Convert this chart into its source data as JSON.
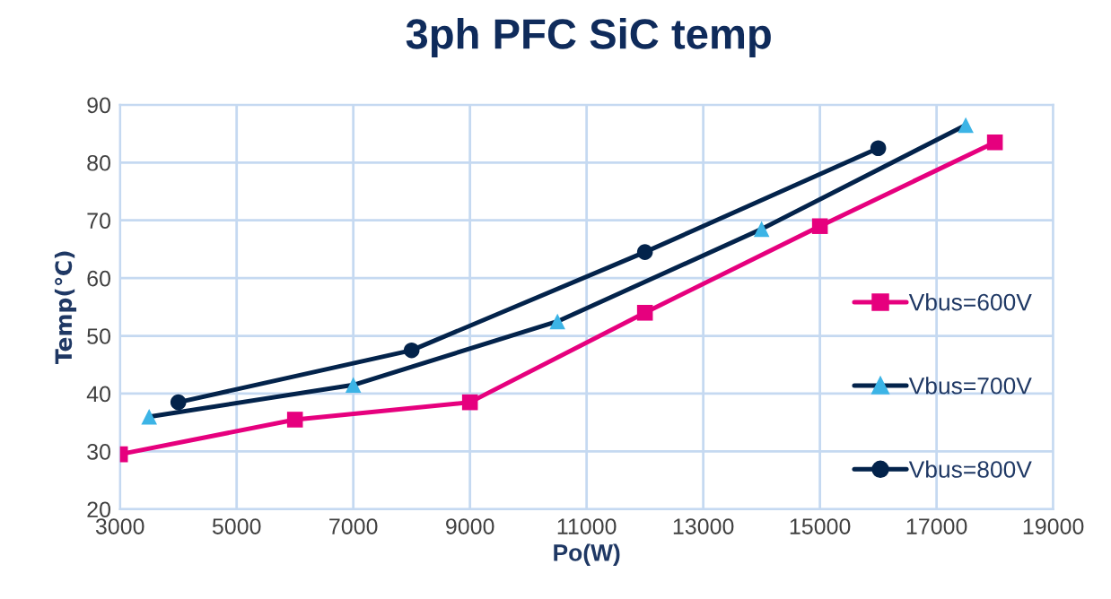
{
  "chart_data": {
    "type": "line",
    "title": "3ph PFC SiC temp",
    "xlabel": "Po(W)",
    "ylabel": "Temp(℃)",
    "xlim": [
      3000,
      19000
    ],
    "xticks": [
      3000,
      5000,
      7000,
      9000,
      11000,
      13000,
      15000,
      17000,
      19000
    ],
    "ylim": [
      20,
      90
    ],
    "yticks": [
      20,
      30,
      40,
      50,
      60,
      70,
      80,
      90
    ],
    "grid": true,
    "legend": "right",
    "series": [
      {
        "name": "Vbus=600V",
        "color": "#e6007e",
        "marker": "square",
        "x": [
          3000,
          6000,
          9000,
          12000,
          15000,
          18000
        ],
        "values": [
          29.5,
          35.5,
          38.5,
          54,
          69,
          83.5
        ]
      },
      {
        "name": "Vbus=700V",
        "color": "#03234b",
        "colors": [
          "#3cb4e6",
          "#3cb4e6",
          "#3cb4e6",
          "#3cb4e6",
          "#3cb4e6"
        ],
        "marker": "triangle",
        "x": [
          3500,
          7000,
          10500,
          14000,
          17500
        ],
        "values": [
          36,
          41.5,
          52.5,
          68.5,
          86.5
        ]
      },
      {
        "name": "Vbus=800V",
        "color": "#03234b",
        "marker": "circle",
        "x": [
          4000,
          8000,
          12000,
          16000
        ],
        "values": [
          38.5,
          47.5,
          64.5,
          82.5
        ]
      }
    ]
  }
}
